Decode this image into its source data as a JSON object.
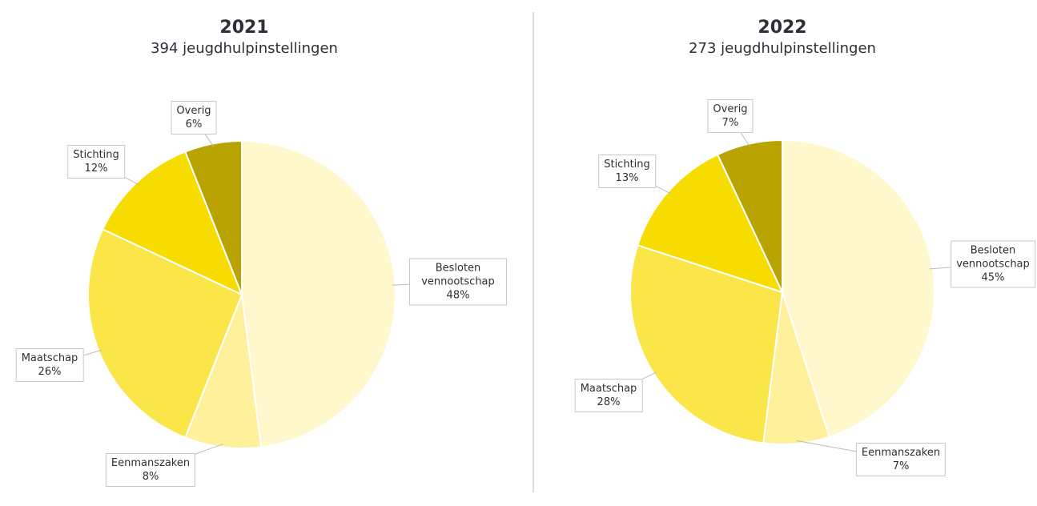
{
  "chart_data": [
    {
      "type": "pie",
      "title": "2021",
      "subtitle": "394 jeugdhulpinstellingen",
      "categories": [
        "Besloten vennootschap",
        "Eenmanszaken",
        "Maatschap",
        "Stichting",
        "Overig"
      ],
      "values": [
        48,
        8,
        26,
        12,
        6
      ],
      "value_labels": [
        "48%",
        "8%",
        "26%",
        "12%",
        "6%"
      ],
      "colors": [
        "#fff8cc",
        "#fff09c",
        "#fbe64a",
        "#f7dc00",
        "#b9a300"
      ]
    },
    {
      "type": "pie",
      "title": "2022",
      "subtitle": "273 jeugdhulpinstellingen",
      "categories": [
        "Besloten vennootschap",
        "Eenmanszaken",
        "Maatschap",
        "Stichting",
        "Overig"
      ],
      "values": [
        45,
        7,
        28,
        13,
        7
      ],
      "value_labels": [
        "45%",
        "7%",
        "28%",
        "13%",
        "7%"
      ],
      "colors": [
        "#fff8cc",
        "#fff09c",
        "#fbe64a",
        "#f7dc00",
        "#b9a300"
      ]
    }
  ]
}
